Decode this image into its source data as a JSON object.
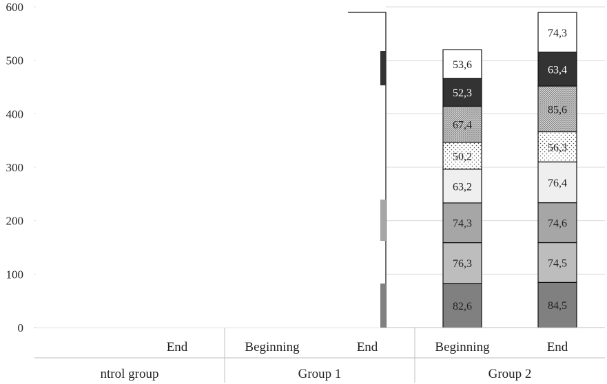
{
  "chart_data": {
    "type": "bar",
    "stacked": true,
    "ylim": [
      0,
      600
    ],
    "yticks": [
      0,
      100,
      200,
      300,
      400,
      500,
      600
    ],
    "grid": true,
    "categories": [
      {
        "group": "ntrol group",
        "label": ""
      },
      {
        "group": "ntrol group",
        "label": "End"
      },
      {
        "group": "Group 1",
        "label": "Beginning"
      },
      {
        "group": "Group 1",
        "label": "End"
      },
      {
        "group": "Group 2",
        "label": "Beginning"
      },
      {
        "group": "Group 2",
        "label": "End"
      }
    ],
    "groups": [
      "ntrol group",
      "Group 1",
      "Group 2"
    ],
    "series_colors": [
      "#808080",
      "#bdbdbd",
      "#a6a6a6",
      "#efefef",
      "#ffffff",
      "#c8c8c8",
      "#333333",
      "#ffffff"
    ],
    "series_patterns": [
      "solid",
      "solid",
      "solid",
      "solid",
      "dots-sparse",
      "dots-dense",
      "solid",
      "solid"
    ],
    "visible_bars": [
      {
        "category_index": 4,
        "values": [
          82.6,
          76.3,
          74.3,
          63.2,
          50.2,
          67.4,
          52.3,
          53.6
        ]
      },
      {
        "category_index": 5,
        "values": [
          84.5,
          74.5,
          74.6,
          76.4,
          56.3,
          85.6,
          63.4,
          74.3
        ]
      }
    ]
  }
}
